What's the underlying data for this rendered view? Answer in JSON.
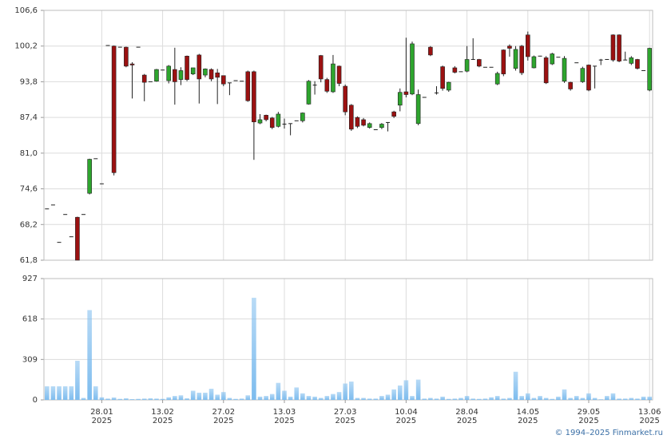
{
  "chart_data": [
    {
      "type": "candlestick",
      "categories": [
        null,
        null,
        null,
        null,
        null,
        null,
        null,
        null,
        null,
        "28.01",
        null,
        null,
        null,
        null,
        null,
        null,
        null,
        null,
        null,
        "13.02",
        null,
        null,
        null,
        null,
        null,
        null,
        null,
        null,
        null,
        "27.02",
        null,
        null,
        null,
        null,
        null,
        null,
        null,
        null,
        null,
        "13.03",
        null,
        null,
        null,
        null,
        null,
        null,
        null,
        null,
        null,
        "27.03",
        null,
        null,
        null,
        null,
        null,
        null,
        null,
        null,
        null,
        "10.04",
        null,
        null,
        null,
        null,
        null,
        null,
        null,
        null,
        null,
        "28.04",
        null,
        null,
        null,
        null,
        null,
        null,
        null,
        null,
        null,
        "14.05",
        null,
        null,
        null,
        null,
        null,
        null,
        null,
        null,
        null,
        "29.05",
        null,
        null,
        null,
        null,
        null,
        null,
        null,
        null,
        null,
        "13.06"
      ],
      "category_years": [
        null,
        null,
        null,
        null,
        null,
        null,
        null,
        null,
        null,
        "2025",
        null,
        null,
        null,
        null,
        null,
        null,
        null,
        null,
        null,
        "2025",
        null,
        null,
        null,
        null,
        null,
        null,
        null,
        null,
        null,
        "2025",
        null,
        null,
        null,
        null,
        null,
        null,
        null,
        null,
        null,
        "2025",
        null,
        null,
        null,
        null,
        null,
        null,
        null,
        null,
        null,
        "2025",
        null,
        null,
        null,
        null,
        null,
        null,
        null,
        null,
        null,
        "2025",
        null,
        null,
        null,
        null,
        null,
        null,
        null,
        null,
        null,
        "2025",
        null,
        null,
        null,
        null,
        null,
        null,
        null,
        null,
        null,
        "2025",
        null,
        null,
        null,
        null,
        null,
        null,
        null,
        null,
        null,
        "2025",
        null,
        null,
        null,
        null,
        null,
        null,
        null,
        null,
        null,
        "2025"
      ],
      "open": [
        71.0,
        71.7,
        65.0,
        70.0,
        66.0,
        69.5,
        70.0,
        73.8,
        80.0,
        75.5,
        100.3,
        100.2,
        100.0,
        100.0,
        97.0,
        100.0,
        95.0,
        93.8,
        93.9,
        95.9,
        94.0,
        96.0,
        94.2,
        98.4,
        95.2,
        98.6,
        95.0,
        96.0,
        95.4,
        94.9,
        93.6,
        94.0,
        93.9,
        95.6,
        95.6,
        86.4,
        87.8,
        87.3,
        85.8,
        86.2,
        86.3,
        86.8,
        86.8,
        89.8,
        93.2,
        98.5,
        94.2,
        92.0,
        96.6,
        93.0,
        89.6,
        87.4,
        87.0,
        85.6,
        85.2,
        85.6,
        86.5,
        88.4,
        89.6,
        92.0,
        91.6,
        86.3,
        91.0,
        100.0,
        91.7,
        96.5,
        92.3,
        96.3,
        95.6,
        95.7,
        97.8,
        97.8,
        96.4,
        96.4,
        93.4,
        99.5,
        100.2,
        96.2,
        100.2,
        102.2,
        96.3,
        98.4,
        98.1,
        97.0,
        98.2,
        93.9,
        93.7,
        97.2,
        93.8,
        96.8,
        96.6,
        97.7,
        97.8,
        102.2,
        102.2,
        97.7,
        97.1,
        97.8,
        95.8,
        92.3
      ],
      "high": [
        71.0,
        71.7,
        65.0,
        70.0,
        66.0,
        69.6,
        70.0,
        80.0,
        80.0,
        75.5,
        100.3,
        100.3,
        100.0,
        100.1,
        97.3,
        100.0,
        95.2,
        93.8,
        96.1,
        95.9,
        96.8,
        99.9,
        96.4,
        98.5,
        96.3,
        98.8,
        96.2,
        96.2,
        96.1,
        94.9,
        93.6,
        94.0,
        93.9,
        95.8,
        95.8,
        88.0,
        87.9,
        87.5,
        88.4,
        87.2,
        86.3,
        86.8,
        88.3,
        94.1,
        93.9,
        98.6,
        94.5,
        98.6,
        96.7,
        93.3,
        89.8,
        87.6,
        87.3,
        86.5,
        85.2,
        86.4,
        86.5,
        88.6,
        92.6,
        101.7,
        101.0,
        92.4,
        91.0,
        100.2,
        93.0,
        96.7,
        93.8,
        96.6,
        95.6,
        100.2,
        101.6,
        97.9,
        96.4,
        96.4,
        95.6,
        99.6,
        100.5,
        100.2,
        100.4,
        102.8,
        98.5,
        98.4,
        98.4,
        99.0,
        98.2,
        98.4,
        93.8,
        97.2,
        96.5,
        96.9,
        96.6,
        97.9,
        97.8,
        102.3,
        102.3,
        99.2,
        98.4,
        97.9,
        95.8,
        99.9
      ],
      "low": [
        71.0,
        71.7,
        65.0,
        70.0,
        66.0,
        61.8,
        70.0,
        73.6,
        80.0,
        75.5,
        100.3,
        77.0,
        100.0,
        96.4,
        90.8,
        100.0,
        90.3,
        93.8,
        93.8,
        95.9,
        93.5,
        89.7,
        93.2,
        93.9,
        95.0,
        89.9,
        94.6,
        93.9,
        89.8,
        93.0,
        91.4,
        94.0,
        93.9,
        90.2,
        79.8,
        86.2,
        86.7,
        85.3,
        85.6,
        85.4,
        84.2,
        86.8,
        86.5,
        89.7,
        91.5,
        93.7,
        91.8,
        91.8,
        93.0,
        87.8,
        85.0,
        85.5,
        85.8,
        85.4,
        85.2,
        85.3,
        84.9,
        87.3,
        88.5,
        91.0,
        91.4,
        86.0,
        91.0,
        98.4,
        91.5,
        92.2,
        92.0,
        95.3,
        95.6,
        95.5,
        97.8,
        96.4,
        96.4,
        96.4,
        93.2,
        94.8,
        98.3,
        95.8,
        95.0,
        97.6,
        96.2,
        98.4,
        93.4,
        96.8,
        98.2,
        93.6,
        92.2,
        97.2,
        93.6,
        92.1,
        92.6,
        96.8,
        97.8,
        97.4,
        97.3,
        97.7,
        96.8,
        96.0,
        95.8,
        92.1
      ],
      "close": [
        71.0,
        71.7,
        65.0,
        70.0,
        66.0,
        61.8,
        70.0,
        79.9,
        80.0,
        75.5,
        100.3,
        77.5,
        100.0,
        96.6,
        96.8,
        100.0,
        93.7,
        93.8,
        96.0,
        95.9,
        96.6,
        93.8,
        95.8,
        94.2,
        96.3,
        94.3,
        96.1,
        94.3,
        94.6,
        93.4,
        93.6,
        94.0,
        93.9,
        90.4,
        86.6,
        87.0,
        87.0,
        85.6,
        88.0,
        86.2,
        86.3,
        86.8,
        88.2,
        93.9,
        93.2,
        94.3,
        92.1,
        97.0,
        93.5,
        88.4,
        85.3,
        85.8,
        86.0,
        86.3,
        85.2,
        86.2,
        86.5,
        87.6,
        91.9,
        91.5,
        100.6,
        91.5,
        91.0,
        98.6,
        91.8,
        92.6,
        93.7,
        95.5,
        95.6,
        97.8,
        97.8,
        96.6,
        96.4,
        96.4,
        95.3,
        95.2,
        99.8,
        99.6,
        95.4,
        98.3,
        98.3,
        98.4,
        93.6,
        98.8,
        98.2,
        98.0,
        92.5,
        97.2,
        96.2,
        92.3,
        96.6,
        97.7,
        97.8,
        97.7,
        97.5,
        97.7,
        98.1,
        96.2,
        95.8,
        99.8
      ],
      "up_color": "#2ea52e",
      "down_color": "#9b1111",
      "ylim": [
        61.8,
        106.6
      ],
      "yticks": [
        {
          "value": 61.8,
          "label": "61,8"
        },
        {
          "value": 68.2,
          "label": "68,2"
        },
        {
          "value": 74.6,
          "label": "74,6"
        },
        {
          "value": 81.0,
          "label": "81,0"
        },
        {
          "value": 87.4,
          "label": "87,4"
        },
        {
          "value": 93.8,
          "label": "93,8"
        },
        {
          "value": 100.2,
          "label": "100,2"
        },
        {
          "value": 106.6,
          "label": "106,6"
        }
      ],
      "grid": true
    },
    {
      "type": "bar",
      "values": [
        104,
        104,
        104,
        104,
        104,
        299,
        15,
        686,
        104,
        20,
        10,
        18,
        8,
        12,
        6,
        8,
        10,
        12,
        10,
        8,
        20,
        30,
        35,
        12,
        70,
        55,
        55,
        85,
        40,
        60,
        15,
        8,
        10,
        35,
        780,
        25,
        30,
        45,
        130,
        70,
        25,
        95,
        50,
        30,
        25,
        15,
        30,
        45,
        60,
        125,
        140,
        15,
        15,
        10,
        10,
        30,
        40,
        80,
        110,
        150,
        30,
        155,
        10,
        15,
        10,
        25,
        8,
        10,
        15,
        30,
        10,
        8,
        10,
        20,
        30,
        10,
        15,
        215,
        30,
        50,
        15,
        30,
        15,
        8,
        25,
        80,
        15,
        30,
        15,
        50,
        15,
        5,
        30,
        50,
        10,
        10,
        15,
        10,
        25,
        25
      ],
      "color": "#7dbcee",
      "ylim": [
        0,
        927
      ],
      "yticks": [
        0,
        309,
        618,
        927
      ],
      "grid": true
    }
  ],
  "footer": "© 1994–2025 Finmarket.ru"
}
